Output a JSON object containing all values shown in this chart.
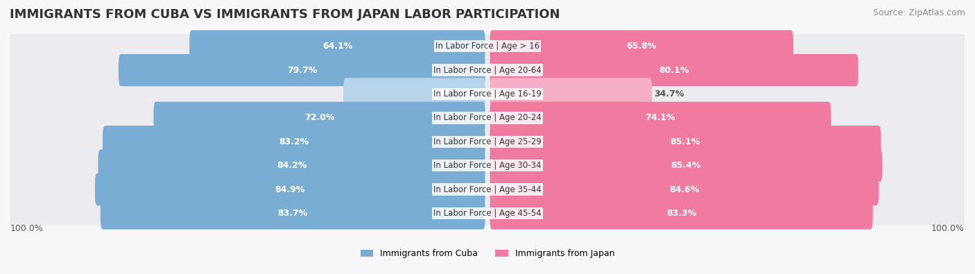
{
  "title": "IMMIGRANTS FROM CUBA VS IMMIGRANTS FROM JAPAN LABOR PARTICIPATION",
  "source": "Source: ZipAtlas.com",
  "categories": [
    "In Labor Force | Age > 16",
    "In Labor Force | Age 20-64",
    "In Labor Force | Age 16-19",
    "In Labor Force | Age 20-24",
    "In Labor Force | Age 25-29",
    "In Labor Force | Age 30-34",
    "In Labor Force | Age 35-44",
    "In Labor Force | Age 45-54"
  ],
  "cuba_values": [
    64.1,
    79.7,
    30.2,
    72.0,
    83.2,
    84.2,
    84.9,
    83.7
  ],
  "japan_values": [
    65.8,
    80.1,
    34.7,
    74.1,
    85.1,
    85.4,
    84.6,
    83.3
  ],
  "cuba_color": "#7aadd4",
  "cuba_color_light": "#b8d4ea",
  "japan_color": "#f07aa0",
  "japan_color_light": "#f5b0c8",
  "label_color_dark": "#555555",
  "bg_row_color": "#f0f0f5",
  "bar_max": 100.0,
  "legend_cuba": "Immigrants from Cuba",
  "legend_japan": "Immigrants from Japan",
  "title_fontsize": 13,
  "source_fontsize": 9,
  "bar_label_fontsize": 9,
  "category_fontsize": 8.5,
  "legend_fontsize": 9
}
